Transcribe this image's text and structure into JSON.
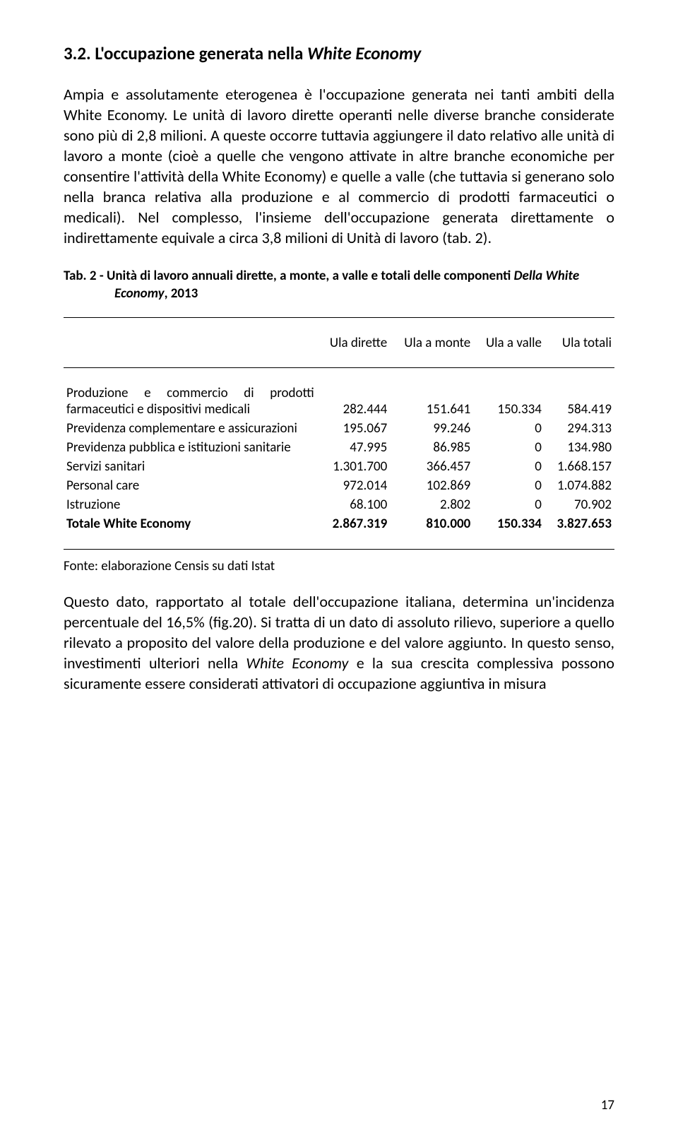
{
  "heading": {
    "number": "3.2.",
    "title_plain": "L'occupazione generata nella ",
    "title_italic": "White Economy"
  },
  "para1": {
    "s1": "Ampia e assolutamente eterogenea è l'occupazione generata nei tanti ambiti della White Economy. Le unità di lavoro dirette operanti nelle diverse branche considerate sono più di 2,8 milioni. A queste occorre tuttavia aggiungere il dato relativo alle unità di lavoro a monte (cioè a quelle che vengono attivate in altre branche economiche per consentire l'attività della White Economy) e quelle a valle (che tuttavia si generano solo nella branca relativa alla produzione e al commercio di prodotti farmaceutici o medicali). Nel complesso, l'insieme dell'occupazione generata direttamente o indirettamente equivale a circa 3,8 milioni di Unità di lavoro (tab. 2)."
  },
  "table": {
    "caption_prefix": "Tab. 2 -  ",
    "caption_line1": "Unità di lavoro annuali dirette, a monte, a valle e totali delle componenti ",
    "caption_italic": "Della White Economy",
    "caption_suffix": ", 2013",
    "headers": [
      "",
      "Ula dirette",
      "Ula a monte",
      "Ula a valle",
      "Ula totali"
    ],
    "rows": [
      {
        "label": "Produzione e commercio di prodotti farmaceutici e dispositivi medicali",
        "c1": "282.444",
        "c2": "151.641",
        "c3": "150.334",
        "c4": "584.419"
      },
      {
        "label": "Previdenza complementare e assicurazioni",
        "c1": "195.067",
        "c2": "99.246",
        "c3": "0",
        "c4": "294.313"
      },
      {
        "label": "Previdenza pubblica e istituzioni sanitarie",
        "c1": "47.995",
        "c2": "86.985",
        "c3": "0",
        "c4": "134.980"
      },
      {
        "label": "Servizi sanitari",
        "c1": "1.301.700",
        "c2": "366.457",
        "c3": "0",
        "c4": "1.668.157"
      },
      {
        "label": "Personal care",
        "c1": "972.014",
        "c2": "102.869",
        "c3": "0",
        "c4": "1.074.882"
      },
      {
        "label": "Istruzione",
        "c1": "68.100",
        "c2": "2.802",
        "c3": "0",
        "c4": "70.902"
      }
    ],
    "total": {
      "label": "Totale White Economy",
      "c1": "2.867.319",
      "c2": "810.000",
      "c3": "150.334",
      "c4": "3.827.653"
    },
    "source": "Fonte: elaborazione Censis su dati Istat"
  },
  "para2": {
    "pre": "Questo dato, rapportato al totale dell'occupazione italiana, determina un'incidenza percentuale del 16,5% (fig.20). Si tratta di un dato di assoluto rilievo, superiore a quello rilevato a proposito del valore della produzione e del valore aggiunto. In questo senso, investimenti ulteriori nella ",
    "italic1": "White Economy",
    "post": " e la sua crescita complessiva possono sicuramente essere considerati attivatori di occupazione aggiuntiva in misura"
  },
  "page_number": "17"
}
